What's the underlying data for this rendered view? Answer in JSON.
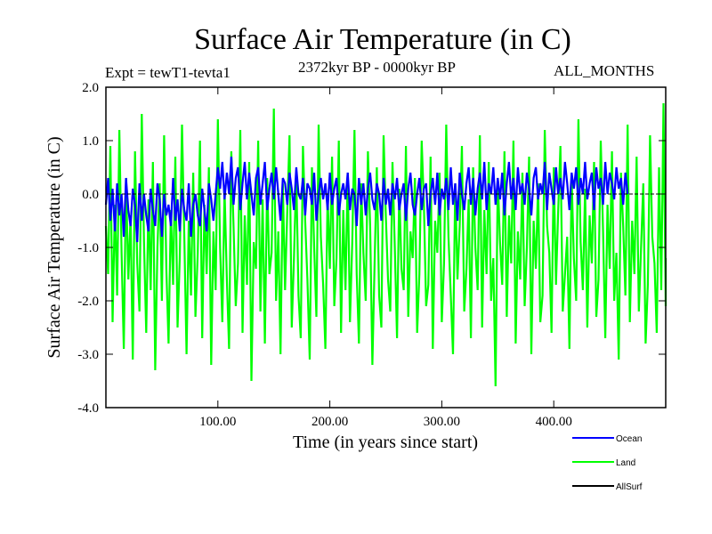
{
  "chart_data": {
    "type": "line",
    "title": "Surface Air Temperature (in C)",
    "experiment": "Expt = tewT1-tevta1",
    "period": "2372kyr BP - 0000kyr BP",
    "months": "ALL_MONTHS",
    "xlabel": "Time (in years since start)",
    "ylabel": "Surface Air Temperature (in C)",
    "xlim": [
      0,
      500
    ],
    "ylim": [
      -4.0,
      2.0
    ],
    "xticks": [
      100,
      200,
      300,
      400
    ],
    "xtick_labels": [
      "100.00",
      "200.00",
      "300.00",
      "400.00"
    ],
    "yticks": [
      2.0,
      1.0,
      0.0,
      -1.0,
      -2.0,
      -3.0,
      -4.0
    ],
    "ytick_labels": [
      "2.0",
      "1.0",
      "0.0",
      "-1.0",
      "-2.0",
      "-3.0",
      "-4.0"
    ],
    "legend_position": "bottom-right, outside plot",
    "series": [
      {
        "name": "Land",
        "color": "#00ff00",
        "x_step": 2,
        "values": [
          -0.6,
          -1.5,
          0.9,
          -2.4,
          -0.2,
          -1.9,
          1.2,
          -1.1,
          -2.9,
          0.3,
          -1.6,
          -0.4,
          -3.1,
          0.8,
          -1.3,
          -2.2,
          1.5,
          -0.9,
          -2.6,
          -0.1,
          -1.8,
          0.6,
          -3.3,
          -1.0,
          0.2,
          -2.0,
          1.1,
          -1.4,
          -2.8,
          -0.3,
          -1.7,
          0.7,
          -2.5,
          -1.2,
          1.3,
          -0.8,
          -3.0,
          -0.5,
          -1.9,
          0.4,
          -2.3,
          -1.1,
          1.0,
          -2.7,
          -0.2,
          -1.5,
          0.5,
          -3.2,
          -0.7,
          -1.8,
          1.4,
          -1.0,
          -2.4,
          0.1,
          -1.6,
          -2.9,
          0.8,
          -0.6,
          -2.1,
          -1.3,
          1.2,
          -2.6,
          -0.4,
          -1.7,
          0.6,
          -3.5,
          -0.9,
          -1.4,
          1.0,
          -2.2,
          -0.1,
          -2.8,
          0.3,
          -1.5,
          -1.1,
          1.6,
          -2.0,
          -0.7,
          -3.0,
          0.2,
          -1.8,
          -0.3,
          1.1,
          -2.5,
          -1.2,
          0.4,
          -1.9,
          -2.7,
          0.9,
          -0.5,
          -1.6,
          -3.1,
          0.5,
          -1.0,
          -2.3,
          1.3,
          -0.8,
          -1.7,
          -2.9,
          0.0,
          -1.4,
          0.7,
          -2.1,
          -1.2,
          1.0,
          -2.6,
          -0.3,
          -1.8,
          0.4,
          -2.4,
          -0.9,
          1.2,
          -1.5,
          -2.8,
          0.2,
          -1.1,
          -2.0,
          0.8,
          -0.6,
          -3.2,
          -1.3,
          0.5,
          -1.9,
          -2.5,
          1.1,
          -0.4,
          -1.6,
          -2.2,
          0.6,
          -1.0,
          -2.7,
          0.1,
          -1.4,
          -1.8,
          0.9,
          -2.3,
          -0.7,
          -1.2,
          0.3,
          -2.6,
          -1.5,
          1.0,
          -0.2,
          -2.1,
          -1.7,
          0.7,
          -2.9,
          -0.5,
          -1.1,
          0.4,
          -2.4,
          -1.3,
          1.3,
          -0.8,
          -1.9,
          -3.0,
          0.2,
          -1.6,
          -0.6,
          0.9,
          -2.2,
          -1.4,
          -0.1,
          -2.7,
          0.5,
          -1.0,
          -1.8,
          1.1,
          -2.5,
          -0.3,
          -1.5,
          0.6,
          -2.0,
          -1.2,
          -3.6,
          0.3,
          -0.9,
          -1.7,
          0.8,
          -2.3,
          -0.4,
          -1.3,
          1.0,
          -2.8,
          -0.7,
          -1.6,
          0.4,
          -2.1,
          -1.0,
          0.7,
          -3.0,
          -0.5,
          -1.4,
          0.2,
          -2.4,
          -1.9,
          1.2,
          -0.6,
          -1.1,
          -2.6,
          0.5,
          -1.7,
          -0.3,
          0.9,
          -2.2,
          -1.5,
          -0.8,
          -2.9,
          0.3,
          -1.2,
          -2.0,
          1.4,
          -0.9,
          -1.8,
          0.1,
          -2.5,
          -0.4,
          -1.3,
          0.6,
          -2.3,
          -1.6,
          1.0,
          -0.7,
          -2.7,
          -0.2,
          -1.4,
          0.8,
          -2.0,
          -1.1,
          -3.1,
          0.4,
          -0.6,
          -1.9,
          1.3,
          -2.4,
          -0.5,
          -1.5,
          0.7,
          -2.2,
          -1.0,
          0.2,
          -2.8,
          -1.7,
          1.1,
          -0.8,
          -1.3,
          -2.6,
          0.5,
          -1.8,
          1.7,
          -2.1,
          -1.2
        ]
      },
      {
        "name": "Ocean",
        "color": "#0000ff",
        "x_step": 2,
        "values": [
          -0.2,
          0.3,
          -0.5,
          0.1,
          -0.7,
          0.2,
          -0.4,
          0.0,
          -0.8,
          0.3,
          -0.3,
          -0.6,
          0.1,
          -0.2,
          -0.9,
          0.2,
          -0.5,
          0.0,
          -0.4,
          -0.7,
          0.1,
          -0.3,
          -0.6,
          0.2,
          -0.1,
          -0.8,
          0.0,
          -0.4,
          -0.2,
          -0.6,
          0.3,
          -0.5,
          -0.1,
          -0.7,
          0.1,
          -0.3,
          -0.5,
          0.2,
          -0.8,
          -0.2,
          0.0,
          -0.4,
          -0.6,
          0.1,
          -0.3,
          -0.7,
          0.2,
          -0.1,
          -0.5,
          0.0,
          0.5,
          0.1,
          0.6,
          -0.1,
          0.4,
          0.0,
          0.7,
          -0.2,
          0.3,
          0.5,
          -0.3,
          0.2,
          0.6,
          -0.1,
          0.4,
          0.0,
          -0.4,
          0.3,
          0.5,
          -0.2,
          0.2,
          0.6,
          -0.3,
          0.1,
          0.4,
          -0.1,
          0.5,
          0.0,
          -0.5,
          0.3,
          0.2,
          -0.2,
          0.4,
          0.1,
          -0.3,
          0.5,
          0.0,
          -0.1,
          0.3,
          -0.4,
          0.2,
          0.1,
          -0.2,
          0.4,
          -0.5,
          0.0,
          0.3,
          -0.1,
          0.2,
          -0.3,
          0.4,
          -0.2,
          0.1,
          0.3,
          -0.4,
          0.0,
          0.2,
          -0.1,
          0.4,
          -0.3,
          0.1,
          0.0,
          -0.6,
          0.3,
          -0.2,
          0.2,
          -0.4,
          0.1,
          0.4,
          -0.1,
          -0.3,
          0.2,
          0.0,
          -0.5,
          0.3,
          -0.2,
          0.1,
          -0.4,
          0.2,
          -0.1,
          0.3,
          -0.3,
          0.0,
          0.2,
          -0.5,
          0.1,
          0.4,
          -0.2,
          -0.4,
          0.0,
          0.3,
          -0.3,
          0.1,
          0.2,
          -0.6,
          0.0,
          0.3,
          -0.2,
          0.4,
          -0.4,
          0.1,
          -0.1,
          0.3,
          -0.3,
          0.5,
          -0.2,
          0.2,
          -0.5,
          0.4,
          0.0,
          -0.3,
          0.2,
          0.5,
          -0.2,
          0.3,
          -0.4,
          0.1,
          0.4,
          -0.1,
          0.6,
          -0.3,
          0.2,
          0.0,
          0.5,
          -0.2,
          0.3,
          -0.1,
          0.4,
          -0.4,
          0.2,
          0.6,
          -0.1,
          0.3,
          -0.3,
          0.5,
          0.0,
          0.2,
          -0.2,
          0.4,
          0.1,
          -0.4,
          0.3,
          0.5,
          -0.1,
          0.2,
          0.0,
          0.6,
          -0.3,
          0.4,
          0.1,
          -0.2,
          0.5,
          0.0,
          0.3,
          -0.1,
          0.6,
          0.2,
          -0.3,
          0.4,
          0.1,
          0.5,
          -0.2,
          0.3,
          0.0,
          0.6,
          -0.1,
          0.2,
          0.4,
          -0.3,
          0.5,
          0.1,
          0.3,
          -0.2,
          0.6,
          0.0,
          0.4,
          0.2,
          -0.1,
          0.5,
          0.1,
          0.3,
          -0.2,
          0.4,
          0.0
        ]
      },
      {
        "name": "AllSurf",
        "color": "#000000",
        "x_step": 500,
        "values": [
          0.0,
          0.0
        ]
      }
    ]
  }
}
